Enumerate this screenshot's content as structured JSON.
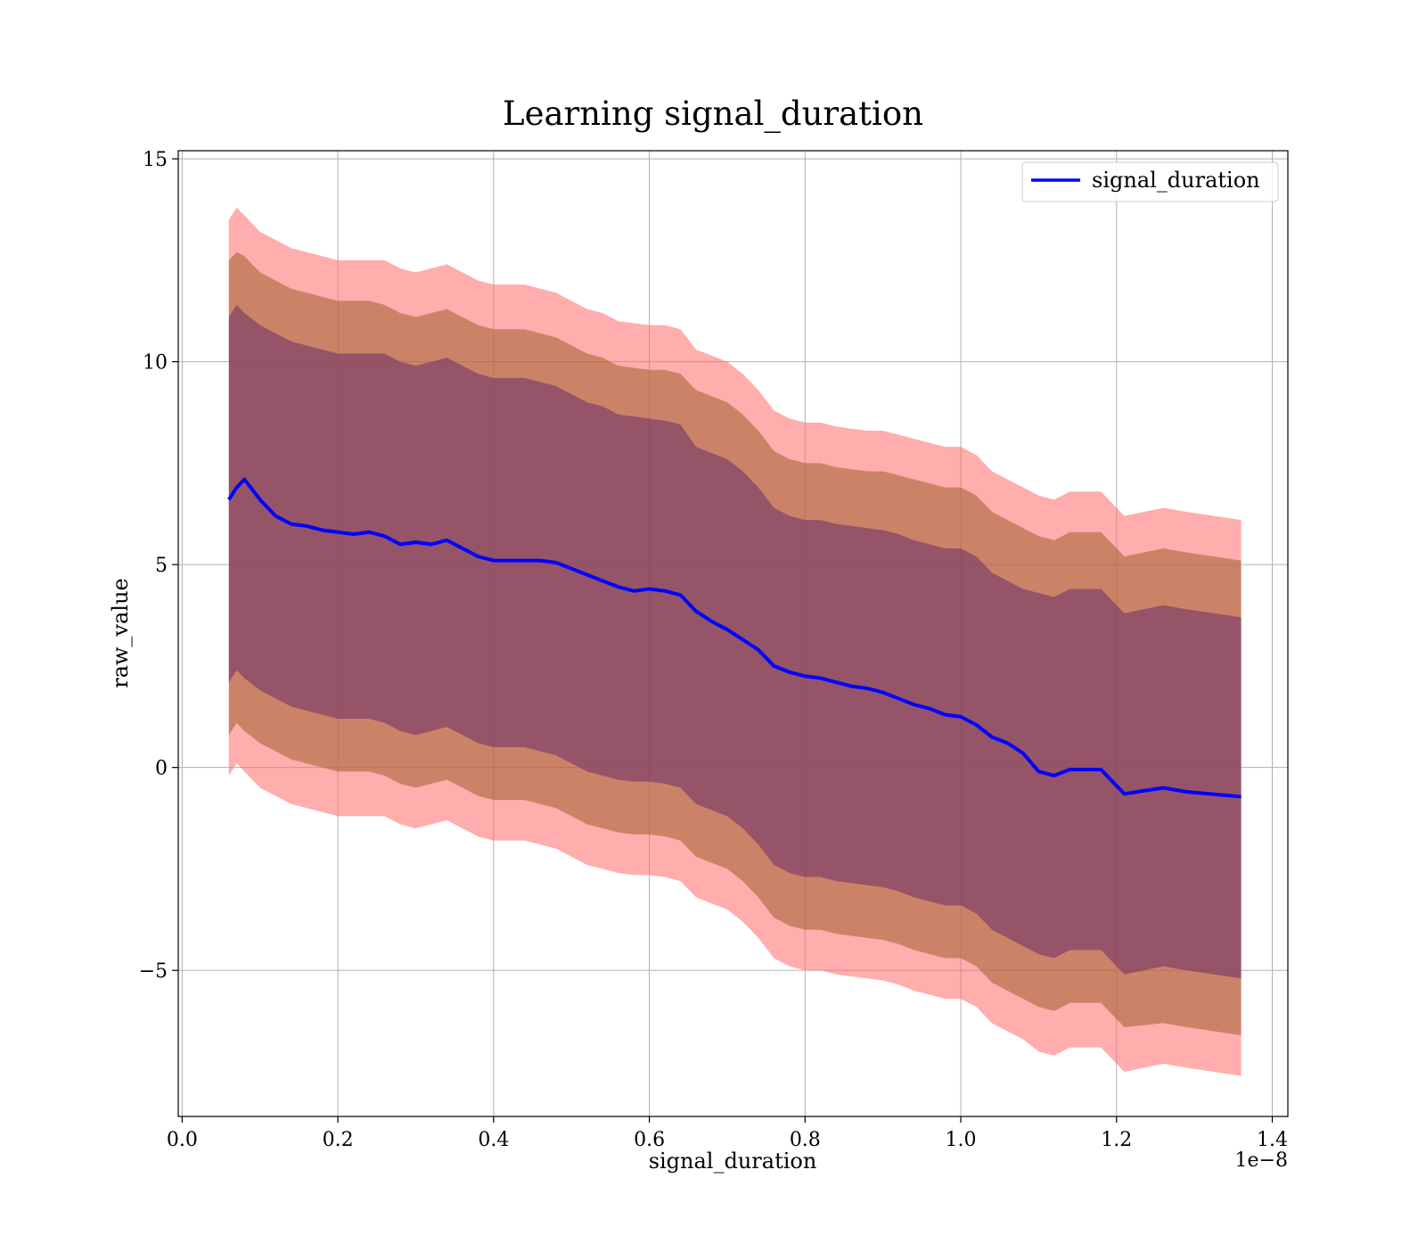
{
  "chart_data": {
    "type": "line",
    "title": "Learning signal_duration",
    "xlabel": "signal_duration",
    "ylabel": "raw_value",
    "x_offset_label": "1e−8",
    "xlim": [
      -0.005,
      1.42
    ],
    "ylim": [
      -8.6,
      15.2
    ],
    "x_ticks": [
      0.0,
      0.2,
      0.4,
      0.6,
      0.8,
      1.0,
      1.2,
      1.4
    ],
    "x_tick_labels": [
      "0.0",
      "0.2",
      "0.4",
      "0.6",
      "0.8",
      "1.0",
      "1.2",
      "1.4"
    ],
    "y_ticks": [
      -5,
      0,
      5,
      10,
      15
    ],
    "y_tick_labels": [
      "−5",
      "0",
      "5",
      "10",
      "15"
    ],
    "grid": true,
    "legend": {
      "position": "top-right",
      "entries": [
        "signal_duration"
      ]
    },
    "colors": {
      "line": "#0000ff",
      "band_outer": "#ff6a6a",
      "band_middle": "#a06030",
      "band_inner": "#7a3a6a",
      "grid": "#b0b0b0"
    },
    "x": [
      0.06,
      0.07,
      0.08,
      0.1,
      0.12,
      0.14,
      0.16,
      0.18,
      0.2,
      0.22,
      0.24,
      0.26,
      0.28,
      0.3,
      0.32,
      0.34,
      0.36,
      0.38,
      0.4,
      0.42,
      0.44,
      0.46,
      0.48,
      0.5,
      0.52,
      0.54,
      0.56,
      0.58,
      0.6,
      0.62,
      0.64,
      0.66,
      0.68,
      0.7,
      0.72,
      0.74,
      0.76,
      0.78,
      0.8,
      0.82,
      0.84,
      0.86,
      0.88,
      0.9,
      0.92,
      0.94,
      0.96,
      0.98,
      1.0,
      1.02,
      1.04,
      1.06,
      1.08,
      1.1,
      1.12,
      1.14,
      1.16,
      1.18,
      1.21,
      1.26,
      1.29,
      1.36
    ],
    "series": [
      {
        "name": "signal_duration",
        "values": [
          6.6,
          6.9,
          7.1,
          6.6,
          6.2,
          6.0,
          5.95,
          5.85,
          5.8,
          5.75,
          5.8,
          5.7,
          5.5,
          5.55,
          5.5,
          5.6,
          5.4,
          5.2,
          5.1,
          5.1,
          5.1,
          5.1,
          5.05,
          4.9,
          4.75,
          4.6,
          4.45,
          4.35,
          4.4,
          4.35,
          4.25,
          3.85,
          3.6,
          3.4,
          3.15,
          2.9,
          2.5,
          2.35,
          2.25,
          2.2,
          2.1,
          2.0,
          1.95,
          1.85,
          1.7,
          1.55,
          1.45,
          1.3,
          1.25,
          1.05,
          0.75,
          0.6,
          0.35,
          -0.1,
          -0.2,
          -0.05,
          -0.05,
          -0.05,
          -0.65,
          -0.5,
          -0.6,
          -0.72
        ]
      }
    ],
    "bands": {
      "outer_upper": [
        13.5,
        13.8,
        13.6,
        13.2,
        13.0,
        12.8,
        12.7,
        12.6,
        12.5,
        12.5,
        12.5,
        12.5,
        12.3,
        12.2,
        12.3,
        12.4,
        12.2,
        12.0,
        11.9,
        11.9,
        11.9,
        11.8,
        11.7,
        11.5,
        11.3,
        11.2,
        11.0,
        10.95,
        10.9,
        10.9,
        10.8,
        10.3,
        10.15,
        10.0,
        9.7,
        9.3,
        8.8,
        8.6,
        8.5,
        8.5,
        8.4,
        8.35,
        8.3,
        8.3,
        8.2,
        8.1,
        8.0,
        7.9,
        7.9,
        7.7,
        7.3,
        7.1,
        6.9,
        6.7,
        6.6,
        6.8,
        6.8,
        6.8,
        6.2,
        6.4,
        6.3,
        6.1
      ],
      "middle_upper": [
        12.5,
        12.7,
        12.6,
        12.2,
        12.0,
        11.8,
        11.7,
        11.6,
        11.5,
        11.5,
        11.5,
        11.4,
        11.2,
        11.1,
        11.2,
        11.3,
        11.1,
        10.9,
        10.8,
        10.8,
        10.8,
        10.7,
        10.6,
        10.4,
        10.2,
        10.1,
        9.9,
        9.85,
        9.8,
        9.8,
        9.7,
        9.3,
        9.15,
        9.0,
        8.7,
        8.3,
        7.8,
        7.6,
        7.5,
        7.5,
        7.4,
        7.35,
        7.3,
        7.3,
        7.2,
        7.1,
        7.0,
        6.9,
        6.9,
        6.7,
        6.3,
        6.1,
        5.9,
        5.7,
        5.6,
        5.8,
        5.8,
        5.8,
        5.2,
        5.4,
        5.3,
        5.1
      ],
      "inner_upper": [
        11.1,
        11.4,
        11.2,
        10.9,
        10.7,
        10.5,
        10.4,
        10.3,
        10.2,
        10.2,
        10.2,
        10.2,
        10.0,
        9.9,
        10.0,
        10.1,
        9.9,
        9.7,
        9.6,
        9.6,
        9.6,
        9.5,
        9.4,
        9.2,
        9.0,
        8.9,
        8.7,
        8.65,
        8.6,
        8.55,
        8.45,
        7.9,
        7.75,
        7.6,
        7.3,
        6.9,
        6.4,
        6.2,
        6.1,
        6.1,
        6.0,
        5.95,
        5.9,
        5.85,
        5.75,
        5.6,
        5.5,
        5.4,
        5.4,
        5.2,
        4.8,
        4.6,
        4.4,
        4.3,
        4.2,
        4.4,
        4.4,
        4.4,
        3.8,
        4.0,
        3.9,
        3.7
      ],
      "inner_lower": [
        2.1,
        2.4,
        2.2,
        1.9,
        1.7,
        1.5,
        1.4,
        1.3,
        1.2,
        1.2,
        1.2,
        1.1,
        0.9,
        0.8,
        0.9,
        1.0,
        0.8,
        0.6,
        0.5,
        0.5,
        0.5,
        0.4,
        0.3,
        0.1,
        -0.1,
        -0.2,
        -0.3,
        -0.35,
        -0.35,
        -0.4,
        -0.5,
        -0.9,
        -1.05,
        -1.2,
        -1.5,
        -1.9,
        -2.4,
        -2.6,
        -2.7,
        -2.7,
        -2.8,
        -2.85,
        -2.9,
        -2.95,
        -3.05,
        -3.2,
        -3.3,
        -3.4,
        -3.4,
        -3.6,
        -4.0,
        -4.2,
        -4.4,
        -4.6,
        -4.7,
        -4.5,
        -4.5,
        -4.5,
        -5.1,
        -4.9,
        -5.0,
        -5.2
      ],
      "middle_lower": [
        0.8,
        1.1,
        0.9,
        0.6,
        0.4,
        0.2,
        0.1,
        0.0,
        -0.1,
        -0.1,
        -0.1,
        -0.2,
        -0.4,
        -0.5,
        -0.4,
        -0.3,
        -0.5,
        -0.7,
        -0.8,
        -0.8,
        -0.8,
        -0.9,
        -1.0,
        -1.2,
        -1.4,
        -1.5,
        -1.6,
        -1.65,
        -1.65,
        -1.7,
        -1.8,
        -2.2,
        -2.35,
        -2.5,
        -2.8,
        -3.2,
        -3.7,
        -3.9,
        -4.0,
        -4.0,
        -4.1,
        -4.15,
        -4.2,
        -4.25,
        -4.35,
        -4.5,
        -4.6,
        -4.7,
        -4.7,
        -4.9,
        -5.3,
        -5.5,
        -5.7,
        -5.9,
        -6.0,
        -5.8,
        -5.8,
        -5.8,
        -6.4,
        -6.3,
        -6.4,
        -6.6
      ],
      "outer_lower": [
        -0.2,
        0.1,
        -0.1,
        -0.5,
        -0.7,
        -0.9,
        -1.0,
        -1.1,
        -1.2,
        -1.2,
        -1.2,
        -1.2,
        -1.4,
        -1.5,
        -1.4,
        -1.3,
        -1.5,
        -1.7,
        -1.8,
        -1.8,
        -1.8,
        -1.9,
        -2.0,
        -2.2,
        -2.4,
        -2.5,
        -2.6,
        -2.65,
        -2.65,
        -2.7,
        -2.8,
        -3.2,
        -3.35,
        -3.5,
        -3.8,
        -4.2,
        -4.7,
        -4.9,
        -5.0,
        -5.0,
        -5.1,
        -5.15,
        -5.2,
        -5.25,
        -5.35,
        -5.5,
        -5.6,
        -5.7,
        -5.7,
        -5.9,
        -6.3,
        -6.5,
        -6.7,
        -7.0,
        -7.1,
        -6.9,
        -6.9,
        -6.9,
        -7.5,
        -7.3,
        -7.4,
        -7.6
      ]
    }
  }
}
